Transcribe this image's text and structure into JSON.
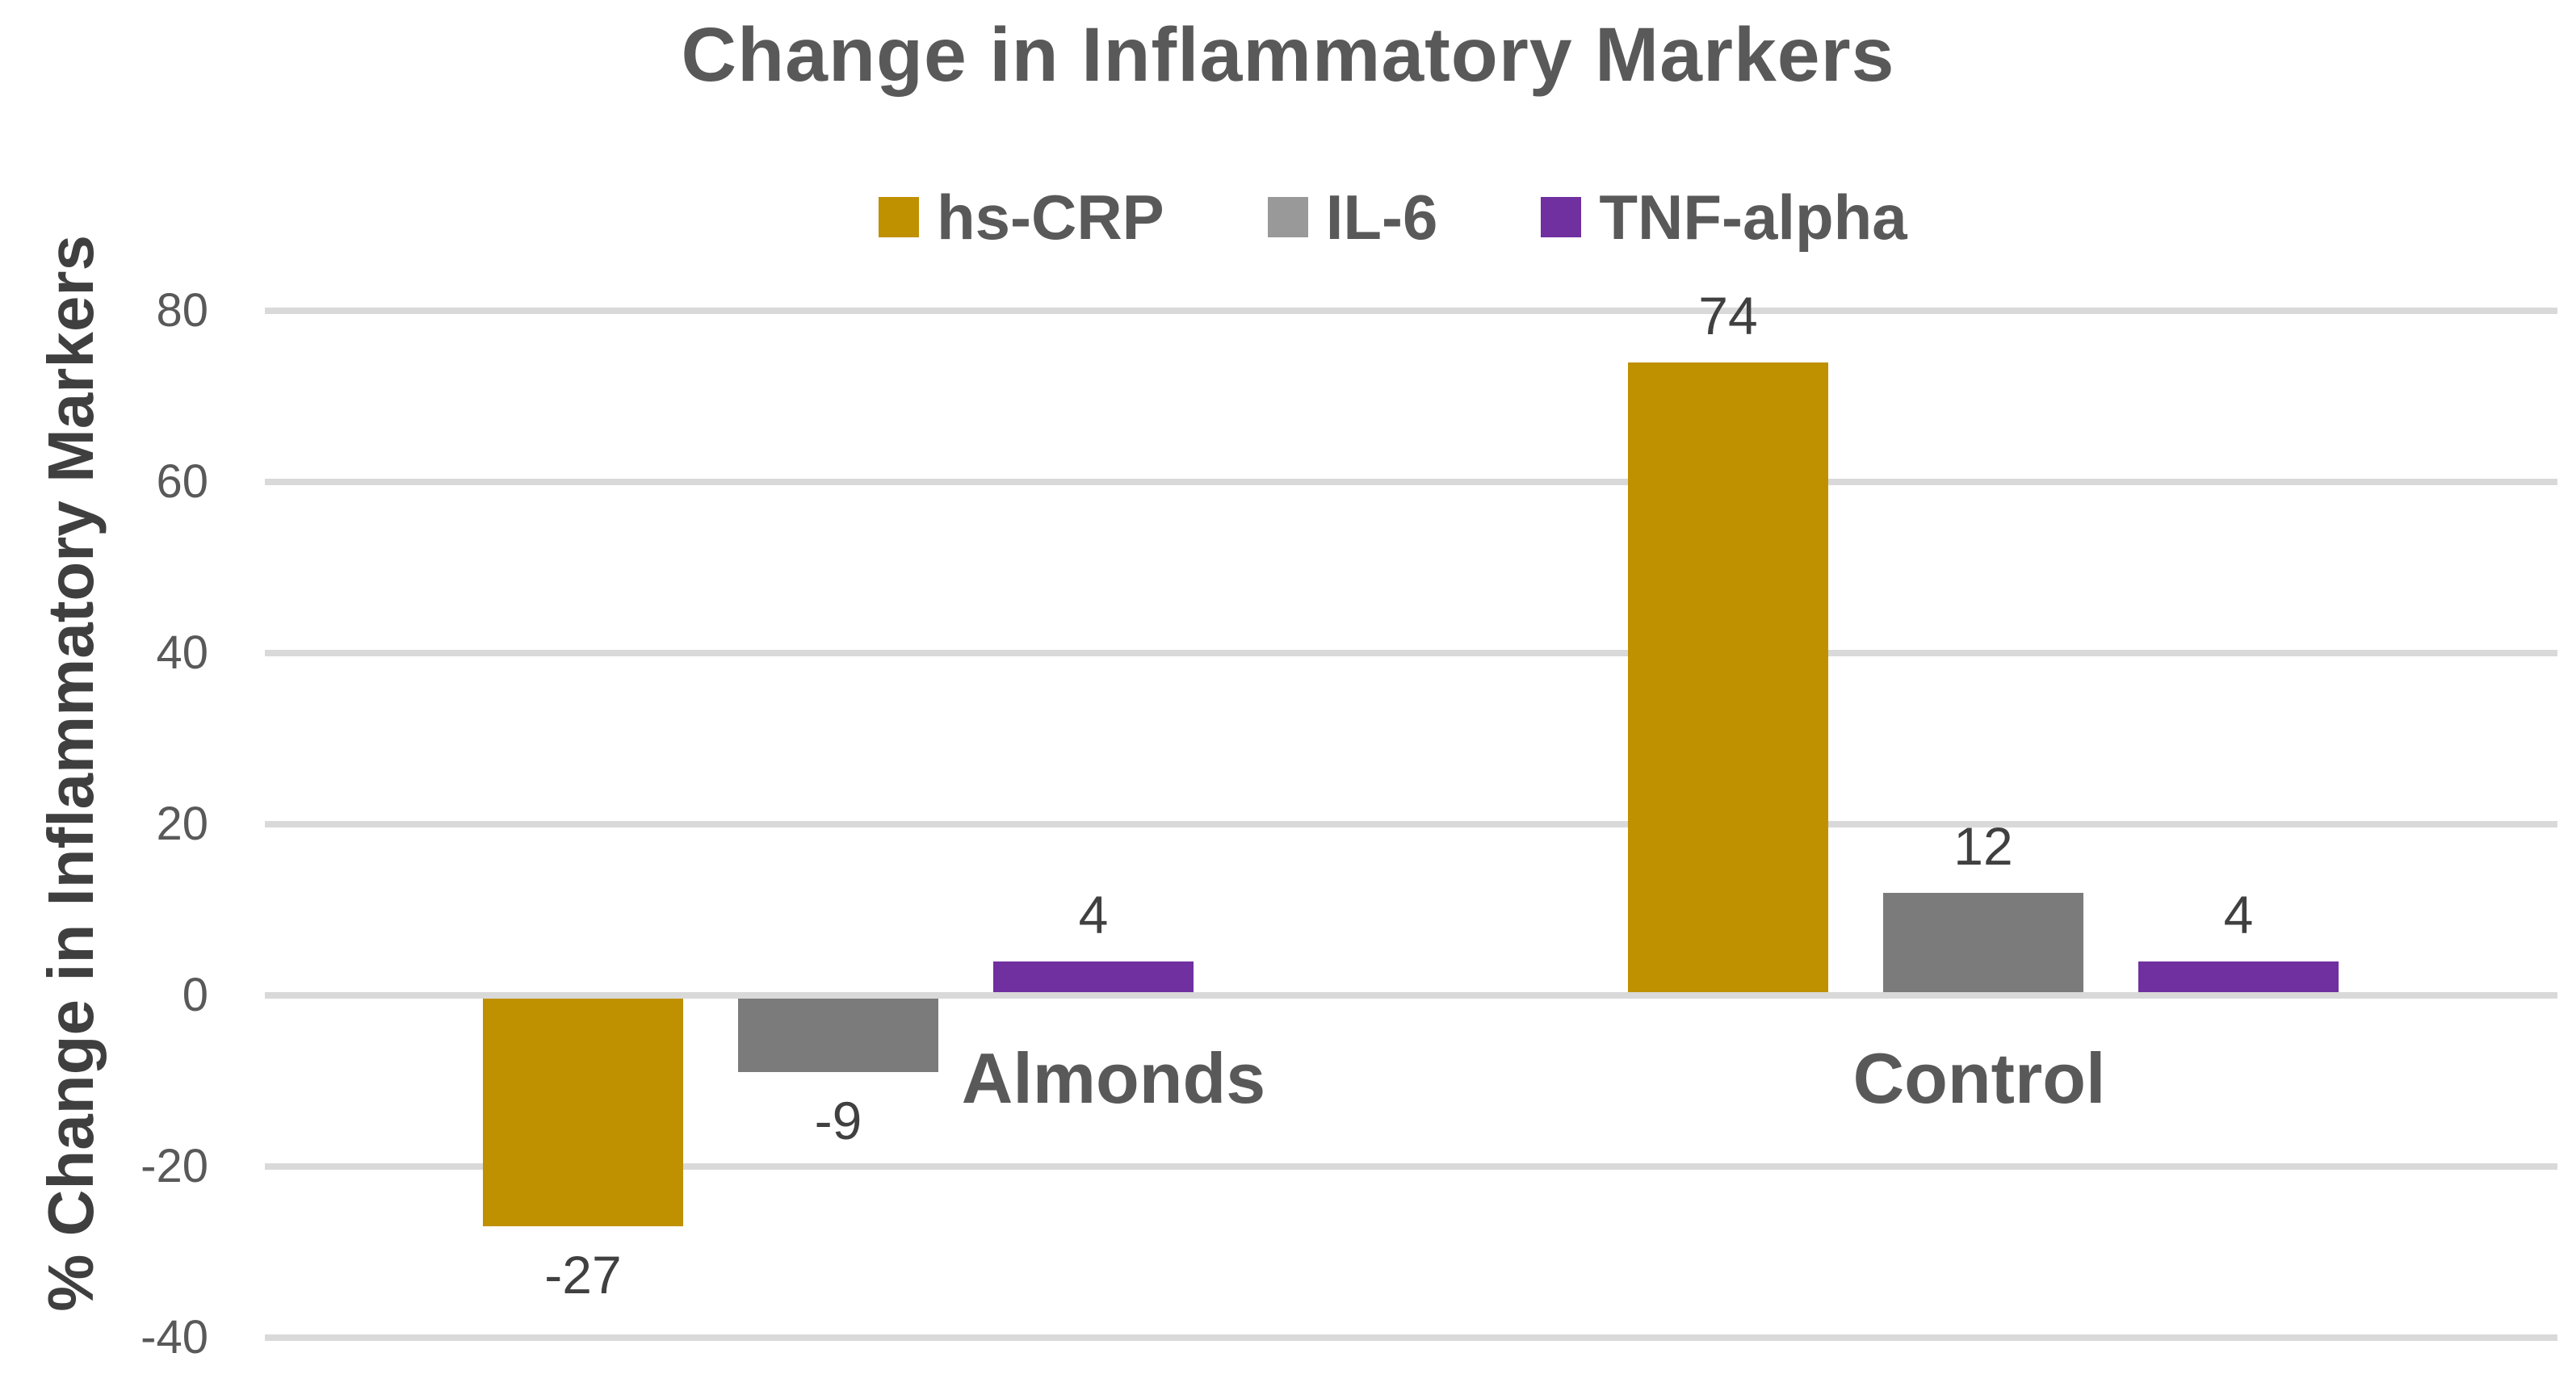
{
  "title": "Change in Inflammatory Markers",
  "colors": {
    "hs_crp": "#BF9000",
    "il6_bar": "#7B7B7B",
    "il6_legend": "#999999",
    "tnf_alpha": "#7030A0",
    "gridline": "#D9D9D9",
    "title_text": "#595959",
    "tick_text": "#595959",
    "data_label_text": "#404040",
    "axis_title_text": "#3F3F3F",
    "background": "#FFFFFF"
  },
  "chart_data": {
    "type": "bar",
    "title": "Change in Inflammatory Markers",
    "categories": [
      "Almonds",
      "Control"
    ],
    "series": [
      {
        "name": "hs-CRP",
        "color": "#BF9000",
        "legend_color": "#BF9000",
        "values": [
          -27,
          74
        ]
      },
      {
        "name": "IL-6",
        "color": "#7B7B7B",
        "legend_color": "#999999",
        "values": [
          -9,
          12
        ]
      },
      {
        "name": "TNF-alpha",
        "color": "#7030A0",
        "legend_color": "#7030A0",
        "values": [
          4,
          4
        ]
      }
    ],
    "xlabel": "",
    "ylabel": "% Change in Inflammatory Markers",
    "ylim": [
      -40,
      80
    ],
    "ytick_step": 20,
    "y_ticks": [
      80,
      60,
      40,
      20,
      0,
      -20,
      -40
    ],
    "grid": true,
    "legend_position": "top",
    "data_labels": true
  }
}
